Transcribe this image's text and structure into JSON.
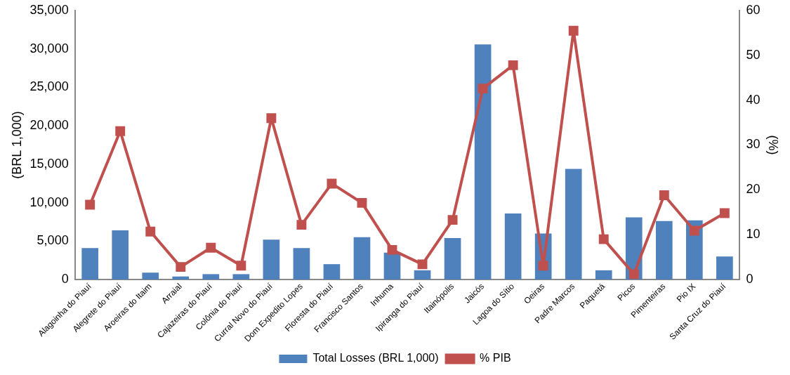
{
  "chart_data": {
    "type": "bar",
    "ylabel": "(BRL 1,000)",
    "y2label": "(%)",
    "categories": [
      "Alagoinha do Piauí",
      "Alegrete do Piauí",
      "Aroeiras do Itaim",
      "Arraial",
      "Cajazeiras do Piauí",
      "Colônia do Piauí",
      "Curral Novo do Piauí",
      "Dom Expedito Lopes",
      "Floresta do Piauí",
      "Francisco Santos",
      "Inhuma",
      "Ipiranga do Piauí",
      "Itainópolis",
      "Jaicós",
      "Lagoa do Sítio",
      "Oeiras",
      "Padre Marcos",
      "Paquetá",
      "Picos",
      "Pimenteiras",
      "Pio IX",
      "Santa Cruz do Piauí"
    ],
    "series": [
      {
        "name": "Total Losses (BRL 1,000)",
        "color": "#4f81bd",
        "values": [
          4100,
          6400,
          900,
          400,
          700,
          700,
          5200,
          4100,
          2000,
          5500,
          3500,
          1200,
          5400,
          30600,
          8600,
          6000,
          14400,
          1200,
          8100,
          7600,
          7700,
          3000
        ]
      },
      {
        "name": "% PIB",
        "type": "line",
        "axis": "y2",
        "color": "#c0504d",
        "marker": "square",
        "values": [
          16.7,
          33.1,
          10.7,
          2.8,
          7.1,
          3.1,
          36,
          12.2,
          21.4,
          17.1,
          6.6,
          3.4,
          13.3,
          42.6,
          47.8,
          3.1,
          55.5,
          9,
          1.2,
          18.8,
          10.9,
          14.8
        ]
      }
    ],
    "ylim": [
      0,
      35000
    ],
    "yticks": [
      {
        "value": 0,
        "label": "0"
      },
      {
        "value": 5000,
        "label": "5,000"
      },
      {
        "value": 10000,
        "label": "10,000"
      },
      {
        "value": 15000,
        "label": "15,000"
      },
      {
        "value": 20000,
        "label": "20,000"
      },
      {
        "value": 25000,
        "label": "25,000"
      },
      {
        "value": 30000,
        "label": "30,000"
      },
      {
        "value": 35000,
        "label": "35,000"
      }
    ],
    "y2lim": [
      0,
      60
    ],
    "y2ticks": [
      0,
      10,
      20,
      30,
      40,
      50,
      60
    ],
    "grid": false,
    "legend": "bottom"
  }
}
